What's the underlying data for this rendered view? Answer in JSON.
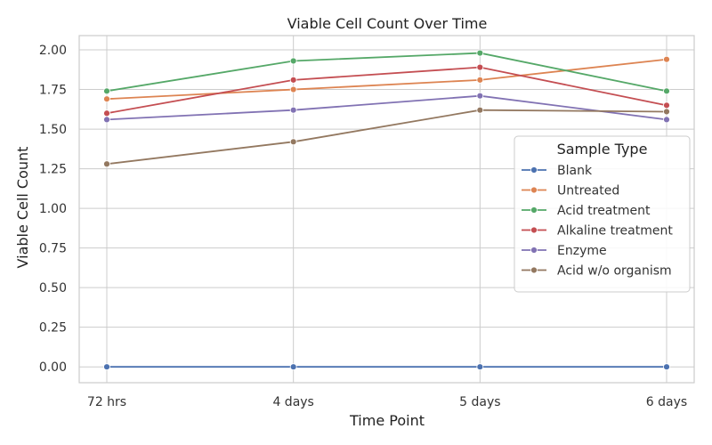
{
  "chart_data": {
    "type": "line",
    "title": "Viable Cell Count Over Time",
    "xlabel": "Time Point",
    "ylabel": "Viable Cell Count",
    "categories": [
      "72 hrs",
      "4 days",
      "5 days",
      "6 days"
    ],
    "ylim": [
      -0.1,
      2.09
    ],
    "yticks": [
      "0.00",
      "0.25",
      "0.50",
      "0.75",
      "1.00",
      "1.25",
      "1.50",
      "1.75",
      "2.00"
    ],
    "grid": true,
    "legend": {
      "title": "Sample Type",
      "placement": "right"
    },
    "series": [
      {
        "name": "Blank",
        "color": "#4c72b0",
        "values": [
          0.0,
          0.0,
          0.0,
          0.0
        ]
      },
      {
        "name": "Untreated",
        "color": "#dd8452",
        "values": [
          1.69,
          1.75,
          1.81,
          1.94
        ]
      },
      {
        "name": "Acid treatment",
        "color": "#55a868",
        "values": [
          1.74,
          1.93,
          1.98,
          1.74
        ]
      },
      {
        "name": "Alkaline treatment",
        "color": "#c44e52",
        "values": [
          1.6,
          1.81,
          1.89,
          1.65
        ]
      },
      {
        "name": "Enzyme",
        "color": "#8172b3",
        "values": [
          1.56,
          1.62,
          1.71,
          1.56
        ]
      },
      {
        "name": "Acid w/o organism",
        "color": "#937860",
        "values": [
          1.28,
          1.42,
          1.62,
          1.61
        ]
      }
    ]
  }
}
